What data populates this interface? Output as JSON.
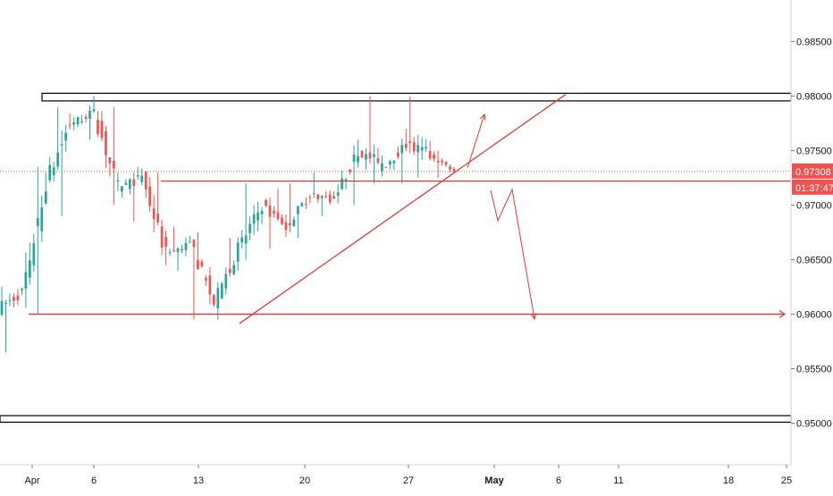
{
  "chart_data": {
    "type": "candlestick",
    "title": "",
    "xlabel": "",
    "ylabel": "",
    "ylim": [
      0.9462,
      0.9888
    ],
    "y_ticks": [
      {
        "value": 0.985,
        "label": "0.98500"
      },
      {
        "value": 0.98,
        "label": "0.98000"
      },
      {
        "value": 0.975,
        "label": "0.97500"
      },
      {
        "value": 0.97,
        "label": "0.97000"
      },
      {
        "value": 0.965,
        "label": "0.96500"
      },
      {
        "value": 0.96,
        "label": "0.96000"
      },
      {
        "value": 0.955,
        "label": "0.95500"
      },
      {
        "value": 0.95,
        "label": "0.95000"
      }
    ],
    "x_ticks": [
      {
        "label": "Apr",
        "bold": false
      },
      {
        "label": "6",
        "bold": false
      },
      {
        "label": "13",
        "bold": false
      },
      {
        "label": "20",
        "bold": false
      },
      {
        "label": "27",
        "bold": false
      },
      {
        "label": "May",
        "bold": true
      },
      {
        "label": "6",
        "bold": false
      },
      {
        "label": "11",
        "bold": false
      },
      {
        "label": "18",
        "bold": false
      },
      {
        "label": "25",
        "bold": false
      }
    ],
    "grid": false,
    "current_price": {
      "value": 0.97308,
      "label": "0.97308",
      "countdown": "01:37:47",
      "color": "#ef5350"
    },
    "colors": {
      "up": "#26a69a",
      "down": "#ef5350",
      "drawing": "#e53935",
      "zone": "#000000"
    },
    "candles_summary": [
      {
        "open": 0.9605,
        "high": 0.9625,
        "low": 0.9565,
        "close": 0.962
      },
      {
        "open": 0.962,
        "high": 0.9735,
        "low": 0.96,
        "close": 0.972
      },
      {
        "open": 0.972,
        "high": 0.979,
        "low": 0.969,
        "close": 0.9775
      },
      {
        "open": 0.9775,
        "high": 0.98,
        "low": 0.976,
        "close": 0.9785
      },
      {
        "open": 0.9785,
        "high": 0.979,
        "low": 0.97,
        "close": 0.9715
      },
      {
        "open": 0.9715,
        "high": 0.9735,
        "low": 0.9685,
        "close": 0.9725
      },
      {
        "open": 0.9725,
        "high": 0.973,
        "low": 0.9645,
        "close": 0.9655
      },
      {
        "open": 0.9655,
        "high": 0.968,
        "low": 0.964,
        "close": 0.9665
      },
      {
        "open": 0.9665,
        "high": 0.9675,
        "low": 0.9595,
        "close": 0.961
      },
      {
        "open": 0.961,
        "high": 0.967,
        "low": 0.9595,
        "close": 0.966
      },
      {
        "open": 0.966,
        "high": 0.972,
        "low": 0.965,
        "close": 0.97
      },
      {
        "open": 0.97,
        "high": 0.9715,
        "low": 0.966,
        "close": 0.968
      },
      {
        "open": 0.968,
        "high": 0.972,
        "low": 0.967,
        "close": 0.971
      },
      {
        "open": 0.971,
        "high": 0.973,
        "low": 0.969,
        "close": 0.9705
      },
      {
        "open": 0.9705,
        "high": 0.976,
        "low": 0.97,
        "close": 0.975
      },
      {
        "open": 0.975,
        "high": 0.98,
        "low": 0.972,
        "close": 0.9735
      },
      {
        "open": 0.9735,
        "high": 0.977,
        "low": 0.972,
        "close": 0.9755
      },
      {
        "open": 0.9755,
        "high": 0.98,
        "low": 0.9725,
        "close": 0.9745
      },
      {
        "open": 0.9745,
        "high": 0.975,
        "low": 0.9725,
        "close": 0.97308
      }
    ],
    "annotations": [
      {
        "type": "zone",
        "label": "",
        "from": 0.97955,
        "to": 0.98025
      },
      {
        "type": "zone",
        "label": "",
        "from": 0.9501,
        "to": 0.9507
      },
      {
        "type": "hline",
        "label": "",
        "value": 0.9722
      },
      {
        "type": "hline",
        "label": "",
        "value": 0.96
      },
      {
        "type": "trendline",
        "label": "",
        "from": [
          0.95915
        ],
        "to": [
          0.98015
        ]
      },
      {
        "type": "projection",
        "label": "",
        "direction": "up"
      },
      {
        "type": "projection",
        "label": "",
        "direction": "down"
      }
    ]
  }
}
